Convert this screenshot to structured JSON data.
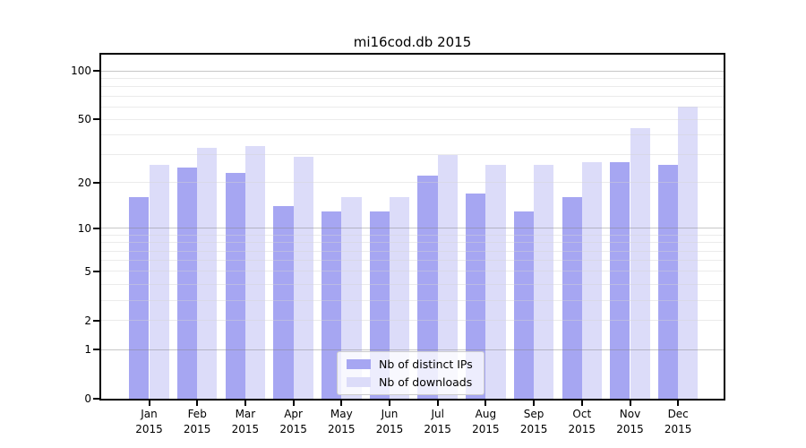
{
  "chart_data": {
    "type": "bar",
    "title": "mi16cod.db 2015",
    "categories": [
      "Jan 2015",
      "Feb 2015",
      "Mar 2015",
      "Apr 2015",
      "May 2015",
      "Jun 2015",
      "Jul 2015",
      "Aug 2015",
      "Sep 2015",
      "Oct 2015",
      "Nov 2015",
      "Dec 2015"
    ],
    "series": [
      {
        "name": "Nb of distinct IPs",
        "color": "#a6a6f2",
        "values": [
          16,
          25,
          23,
          14,
          13,
          13,
          22,
          17,
          13,
          16,
          27,
          26
        ]
      },
      {
        "name": "Nb of downloads",
        "color": "#dcdcf9",
        "values": [
          26,
          33,
          34,
          29,
          16,
          16,
          30,
          26,
          26,
          27,
          44,
          60
        ]
      }
    ],
    "xlabel": "",
    "ylabel": "",
    "yscale": "log1p",
    "ylim": [
      0,
      126
    ],
    "y_ticks": [
      0,
      1,
      2,
      5,
      10,
      20,
      50,
      100
    ],
    "y_tick_labels": [
      "0",
      "1",
      "2",
      "5",
      "10",
      "20",
      "50",
      "100"
    ],
    "major_gridlines": [
      1,
      10,
      100
    ],
    "minor_gridlines": [
      2,
      3,
      4,
      5,
      6,
      7,
      8,
      9,
      20,
      30,
      40,
      50,
      60,
      70,
      80,
      90
    ],
    "grid": true,
    "legend_position": "lower center"
  },
  "colors": {
    "bar_distinct_ips": "#a6a6f2",
    "bar_downloads": "#dcdcf9",
    "spine": "#000000",
    "grid_major": "#c4c4c4",
    "grid_minor": "#e9e9e9",
    "legend_border": "#cccccc",
    "text": "#000000"
  }
}
